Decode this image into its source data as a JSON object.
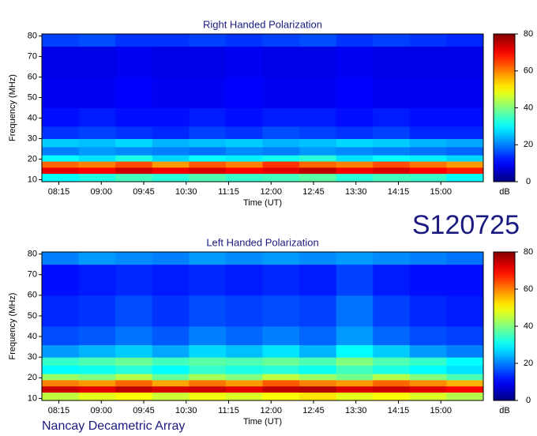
{
  "header": {
    "id": "S120725",
    "observatory": "Nancay Decametric Array"
  },
  "chart_data": [
    {
      "type": "heatmap",
      "title": "Right Handed Polarization",
      "x_label": "Time (UT)",
      "y_label": "Frequency (MHz)",
      "colorbar_label": "dB",
      "colormap": "jet",
      "clim": [
        0,
        80
      ],
      "cticks": [
        0,
        20,
        40,
        60,
        80
      ],
      "xlim": [
        477,
        945
      ],
      "xticks": [
        {
          "value": 495,
          "label": "08:15"
        },
        {
          "value": 540,
          "label": "09:00"
        },
        {
          "value": 585,
          "label": "09:45"
        },
        {
          "value": 630,
          "label": "10:30"
        },
        {
          "value": 675,
          "label": "11:15"
        },
        {
          "value": 720,
          "label": "12:00"
        },
        {
          "value": 765,
          "label": "12:45"
        },
        {
          "value": 810,
          "label": "13:30"
        },
        {
          "value": 855,
          "label": "14:15"
        },
        {
          "value": 900,
          "label": "15:00"
        }
      ],
      "ylim": [
        9,
        81
      ],
      "yticks": [
        10,
        20,
        30,
        40,
        50,
        60,
        70,
        80
      ],
      "x_bins": [
        477,
        516,
        555,
        594,
        633,
        672,
        711,
        750,
        789,
        828,
        867,
        906,
        945
      ],
      "y_bins": [
        9,
        13,
        16,
        19,
        22,
        26,
        30,
        36,
        45,
        60,
        75,
        81
      ],
      "values": [
        [
          30,
          32,
          35,
          33,
          36,
          34,
          35,
          37,
          33,
          35,
          34,
          30
        ],
        [
          72,
          70,
          74,
          71,
          73,
          70,
          72,
          75,
          71,
          73,
          70,
          68
        ],
        [
          62,
          60,
          64,
          58,
          63,
          60,
          66,
          62,
          60,
          64,
          61,
          58
        ],
        [
          30,
          28,
          32,
          27,
          30,
          29,
          31,
          33,
          28,
          30,
          29,
          27
        ],
        [
          20,
          22,
          21,
          20,
          19,
          21,
          20,
          22,
          21,
          20,
          19,
          18
        ],
        [
          26,
          25,
          27,
          24,
          25,
          26,
          24,
          25,
          27,
          26,
          24,
          23
        ],
        [
          14,
          15,
          14,
          13,
          15,
          14,
          16,
          15,
          14,
          15,
          13,
          13
        ],
        [
          11,
          12,
          11,
          11,
          12,
          11,
          12,
          12,
          11,
          12,
          11,
          11
        ],
        [
          9,
          9,
          10,
          9,
          9,
          10,
          9,
          9,
          10,
          9,
          9,
          9
        ],
        [
          8,
          8,
          9,
          8,
          8,
          9,
          8,
          8,
          9,
          8,
          8,
          8
        ],
        [
          15,
          16,
          14,
          14,
          15,
          14,
          15,
          16,
          14,
          15,
          14,
          13
        ]
      ]
    },
    {
      "type": "heatmap",
      "title": "Left Handed Polarization",
      "x_label": "Time (UT)",
      "y_label": "Frequency (MHz)",
      "colorbar_label": "dB",
      "colormap": "jet",
      "clim": [
        0,
        80
      ],
      "cticks": [
        0,
        20,
        40,
        60,
        80
      ],
      "xlim": [
        477,
        945
      ],
      "xticks": [
        {
          "value": 495,
          "label": "08:15"
        },
        {
          "value": 540,
          "label": "09:00"
        },
        {
          "value": 585,
          "label": "09:45"
        },
        {
          "value": 630,
          "label": "10:30"
        },
        {
          "value": 675,
          "label": "11:15"
        },
        {
          "value": 720,
          "label": "12:00"
        },
        {
          "value": 765,
          "label": "12:45"
        },
        {
          "value": 810,
          "label": "13:30"
        },
        {
          "value": 855,
          "label": "14:15"
        },
        {
          "value": 900,
          "label": "15:00"
        }
      ],
      "ylim": [
        9,
        81
      ],
      "yticks": [
        10,
        20,
        30,
        40,
        50,
        60,
        70,
        80
      ],
      "x_bins": [
        477,
        516,
        555,
        594,
        633,
        672,
        711,
        750,
        789,
        828,
        867,
        906,
        945
      ],
      "y_bins": [
        9,
        13,
        16,
        19,
        22,
        26,
        30,
        36,
        45,
        60,
        75,
        81
      ],
      "values": [
        [
          45,
          48,
          50,
          46,
          49,
          47,
          50,
          52,
          48,
          50,
          47,
          44
        ],
        [
          74,
          72,
          75,
          73,
          74,
          72,
          75,
          76,
          73,
          74,
          72,
          70
        ],
        [
          60,
          58,
          62,
          57,
          61,
          58,
          63,
          60,
          58,
          62,
          59,
          56
        ],
        [
          42,
          40,
          44,
          38,
          43,
          40,
          45,
          42,
          39,
          44,
          40,
          36
        ],
        [
          30,
          31,
          33,
          30,
          34,
          32,
          33,
          31,
          35,
          32,
          30,
          28
        ],
        [
          34,
          36,
          38,
          35,
          37,
          36,
          38,
          36,
          40,
          36,
          34,
          30
        ],
        [
          22,
          24,
          26,
          23,
          27,
          25,
          28,
          24,
          30,
          26,
          22,
          20
        ],
        [
          16,
          17,
          19,
          17,
          20,
          18,
          20,
          18,
          22,
          18,
          16,
          15
        ],
        [
          13,
          14,
          16,
          14,
          16,
          15,
          16,
          15,
          19,
          15,
          13,
          12
        ],
        [
          11,
          12,
          13,
          12,
          13,
          12,
          13,
          12,
          15,
          12,
          11,
          11
        ],
        [
          20,
          22,
          21,
          20,
          22,
          21,
          22,
          21,
          22,
          21,
          20,
          19
        ]
      ]
    }
  ]
}
